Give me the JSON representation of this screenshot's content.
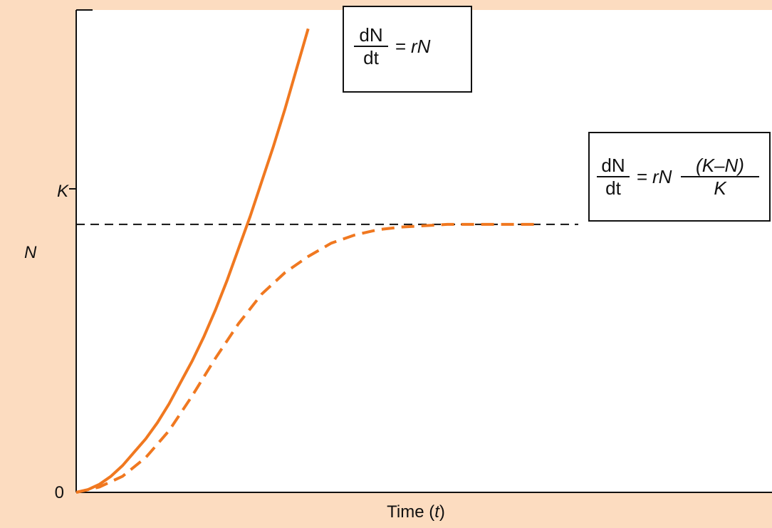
{
  "chart_data": {
    "type": "line",
    "xlabel": "Time (t)",
    "ylabel": "N",
    "y_ticks": [
      "0",
      "K"
    ],
    "series": [
      {
        "style": "solid",
        "equation": "dN/dt = rN",
        "color": "#f07820",
        "x": [
          0,
          0.5,
          1.0,
          1.5,
          2.0,
          2.5,
          3.0,
          3.5,
          4.0,
          4.5,
          5.0,
          5.5,
          6.0,
          6.5,
          7.0,
          7.5,
          8.0,
          8.5,
          9.0,
          9.5,
          10.0
        ],
        "y": [
          0,
          0.01,
          0.03,
          0.06,
          0.1,
          0.15,
          0.2,
          0.26,
          0.33,
          0.41,
          0.49,
          0.58,
          0.68,
          0.79,
          0.91,
          1.03,
          1.16,
          1.29,
          1.43,
          1.58,
          1.73
        ]
      },
      {
        "style": "dashed",
        "equation": "dN/dt = rN (K–N)/K",
        "color": "#f07820",
        "x": [
          0,
          1,
          2,
          3,
          4,
          5,
          6,
          7,
          8,
          9,
          10,
          11,
          12,
          13,
          14,
          15,
          16,
          17,
          18,
          19,
          20
        ],
        "y": [
          0,
          0.02,
          0.06,
          0.13,
          0.23,
          0.36,
          0.5,
          0.63,
          0.74,
          0.82,
          0.88,
          0.93,
          0.96,
          0.98,
          0.99,
          0.995,
          1.0,
          1.0,
          1.0,
          1.0,
          1.0
        ]
      }
    ],
    "reference_line": {
      "label": "K",
      "y": 1.0,
      "style": "dashed",
      "color": "#111111"
    },
    "xlim": [
      0,
      30
    ],
    "ylim": [
      0,
      1.8
    ]
  },
  "labels": {
    "y_axis_symbol": "N",
    "x_axis_text": "Time (",
    "x_axis_var": "t",
    "x_axis_close": ")",
    "origin": "0",
    "k_tick": "K"
  },
  "equations": {
    "exponential": {
      "num": "dN",
      "den": "dt",
      "eq": "=",
      "rhs": "rN"
    },
    "logistic": {
      "num": "dN",
      "den": "dt",
      "eq": "=",
      "rhs": "rN",
      "inner_num": "(K–N)",
      "inner_den": "K"
    }
  }
}
